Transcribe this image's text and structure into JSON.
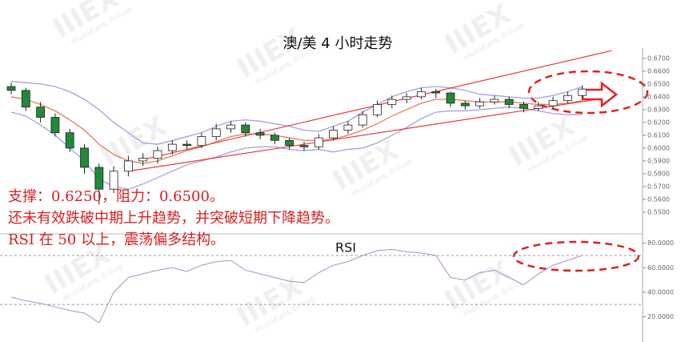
{
  "chart_data": [
    {
      "type": "candlestick",
      "title": "澳/美 4 小时走势",
      "open": [
        0.648,
        0.645,
        0.632,
        0.624,
        0.612,
        0.6,
        0.585,
        0.568,
        0.582,
        0.59,
        0.592,
        0.598,
        0.603,
        0.602,
        0.609,
        0.615,
        0.618,
        0.612,
        0.61,
        0.606,
        0.602,
        0.601,
        0.608,
        0.614,
        0.618,
        0.626,
        0.634,
        0.638,
        0.64,
        0.644,
        0.643,
        0.635,
        0.633,
        0.636,
        0.638,
        0.634,
        0.631,
        0.633,
        0.637,
        0.641
      ],
      "high": [
        0.651,
        0.647,
        0.636,
        0.627,
        0.615,
        0.603,
        0.588,
        0.586,
        0.594,
        0.596,
        0.601,
        0.606,
        0.606,
        0.612,
        0.619,
        0.621,
        0.62,
        0.615,
        0.612,
        0.608,
        0.605,
        0.611,
        0.617,
        0.621,
        0.629,
        0.637,
        0.641,
        0.643,
        0.647,
        0.646,
        0.644,
        0.637,
        0.639,
        0.641,
        0.64,
        0.636,
        0.636,
        0.64,
        0.644,
        0.649
      ],
      "low": [
        0.642,
        0.629,
        0.62,
        0.609,
        0.597,
        0.58,
        0.556,
        0.565,
        0.578,
        0.586,
        0.588,
        0.595,
        0.599,
        0.6,
        0.606,
        0.612,
        0.609,
        0.607,
        0.603,
        0.599,
        0.598,
        0.599,
        0.606,
        0.611,
        0.616,
        0.624,
        0.631,
        0.635,
        0.638,
        0.639,
        0.632,
        0.63,
        0.631,
        0.634,
        0.631,
        0.628,
        0.629,
        0.631,
        0.635,
        0.639
      ],
      "close": [
        0.645,
        0.632,
        0.624,
        0.612,
        0.6,
        0.585,
        0.568,
        0.582,
        0.59,
        0.592,
        0.598,
        0.603,
        0.602,
        0.609,
        0.615,
        0.618,
        0.612,
        0.61,
        0.606,
        0.602,
        0.601,
        0.608,
        0.614,
        0.618,
        0.626,
        0.634,
        0.638,
        0.64,
        0.644,
        0.643,
        0.635,
        0.633,
        0.636,
        0.638,
        0.634,
        0.631,
        0.633,
        0.637,
        0.641,
        0.646
      ],
      "up_color": "#ffffff",
      "down_color": "#1f8a3a",
      "bands": [
        {
          "color": "#9b9be0",
          "values": [
            0.652,
            0.651,
            0.65,
            0.648,
            0.644,
            0.638,
            0.63,
            0.62,
            0.612,
            0.604,
            0.603,
            0.606,
            0.609,
            0.612,
            0.617,
            0.621,
            0.622,
            0.621,
            0.619,
            0.617,
            0.614,
            0.613,
            0.617,
            0.621,
            0.628,
            0.634,
            0.64,
            0.644,
            0.647,
            0.648,
            0.647,
            0.645,
            0.642,
            0.641,
            0.64,
            0.639,
            0.639,
            0.641,
            0.644,
            0.648
          ]
        },
        {
          "color": "#e0764a",
          "values": [
            0.64,
            0.638,
            0.634,
            0.629,
            0.622,
            0.614,
            0.603,
            0.595,
            0.59,
            0.588,
            0.59,
            0.594,
            0.598,
            0.601,
            0.605,
            0.609,
            0.611,
            0.611,
            0.61,
            0.608,
            0.606,
            0.606,
            0.607,
            0.61,
            0.614,
            0.619,
            0.625,
            0.63,
            0.635,
            0.638,
            0.638,
            0.637,
            0.636,
            0.636,
            0.636,
            0.635,
            0.634,
            0.634,
            0.635,
            0.637
          ]
        },
        {
          "color": "#9b9be0",
          "values": [
            0.628,
            0.625,
            0.618,
            0.61,
            0.6,
            0.59,
            0.576,
            0.57,
            0.568,
            0.572,
            0.577,
            0.582,
            0.587,
            0.59,
            0.593,
            0.597,
            0.6,
            0.601,
            0.601,
            0.599,
            0.598,
            0.599,
            0.597,
            0.599,
            0.6,
            0.604,
            0.61,
            0.616,
            0.623,
            0.628,
            0.629,
            0.629,
            0.63,
            0.631,
            0.632,
            0.631,
            0.629,
            0.627,
            0.626,
            0.626
          ]
        }
      ],
      "trendlines": [
        {
          "color": "#e83a3a",
          "from": [
            9,
            0.591
          ],
          "to": [
            41,
            0.676
          ]
        },
        {
          "color": "#e83a3a",
          "from": [
            8,
            0.582
          ],
          "to": [
            40,
            0.638
          ]
        }
      ],
      "ylim": [
        0.535,
        0.678
      ],
      "yticks": [
        {
          "value": 0.67,
          "label": "0.6700"
        },
        {
          "value": 0.66,
          "label": "0.6600"
        },
        {
          "value": 0.65,
          "label": "0.6500"
        },
        {
          "value": 0.64,
          "label": "0.6400"
        },
        {
          "value": 0.63,
          "label": "0.6300"
        },
        {
          "value": 0.62,
          "label": "0.6200"
        },
        {
          "value": 0.61,
          "label": "0.6100"
        },
        {
          "value": 0.6,
          "label": "0.6000"
        },
        {
          "value": 0.59,
          "label": "0.5900"
        },
        {
          "value": 0.58,
          "label": "0.5800"
        },
        {
          "value": 0.57,
          "label": "0.5700"
        },
        {
          "value": 0.56,
          "label": "0.5600"
        },
        {
          "value": 0.55,
          "label": "0.5500"
        }
      ],
      "annotations": [
        "支撑：0.6250，阻力：0.6500。",
        "还未有效跌破中期上升趋势，并突破短期下降趋势。",
        "RSI 在 50 以上，震荡偏多结构。"
      ]
    },
    {
      "type": "line",
      "title": "RSI",
      "color": "#b48ac8",
      "values": [
        36,
        33,
        31,
        28,
        25,
        23,
        15,
        40,
        52,
        55,
        58,
        60,
        57,
        62,
        65,
        66,
        58,
        55,
        52,
        49,
        48,
        56,
        62,
        65,
        70,
        74,
        75,
        73,
        72,
        70,
        52,
        50,
        56,
        58,
        52,
        46,
        55,
        62,
        66,
        70
      ],
      "levels": [
        70,
        30
      ],
      "ylim": [
        0,
        87
      ],
      "yticks": [
        {
          "value": 80,
          "label": "80.0000"
        },
        {
          "value": 60,
          "label": "60.0000"
        },
        {
          "value": 40,
          "label": "40.0000"
        },
        {
          "value": 20,
          "label": "20.0000"
        }
      ]
    }
  ],
  "watermark": {
    "logo": "IIIEX",
    "tagline": "MultiBank Group"
  }
}
